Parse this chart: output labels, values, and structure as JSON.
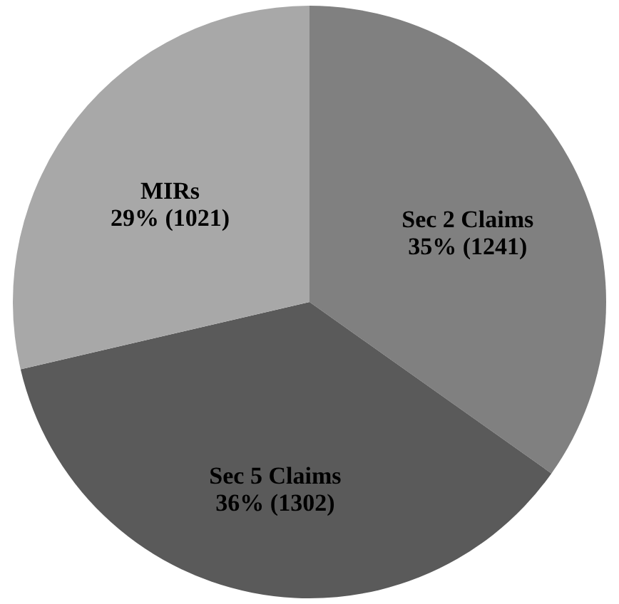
{
  "chart_data": {
    "type": "pie",
    "categories": [
      "Sec 2 Claims",
      "Sec 5 Claims",
      "MIRs"
    ],
    "values": [
      1241,
      1302,
      1021
    ],
    "value_labels": [
      "35% (1241)",
      "36% (1302)",
      "29% (1021)"
    ],
    "colors": [
      "#808080",
      "#5a5a5a",
      "#a8a8a8"
    ],
    "legend": false
  }
}
